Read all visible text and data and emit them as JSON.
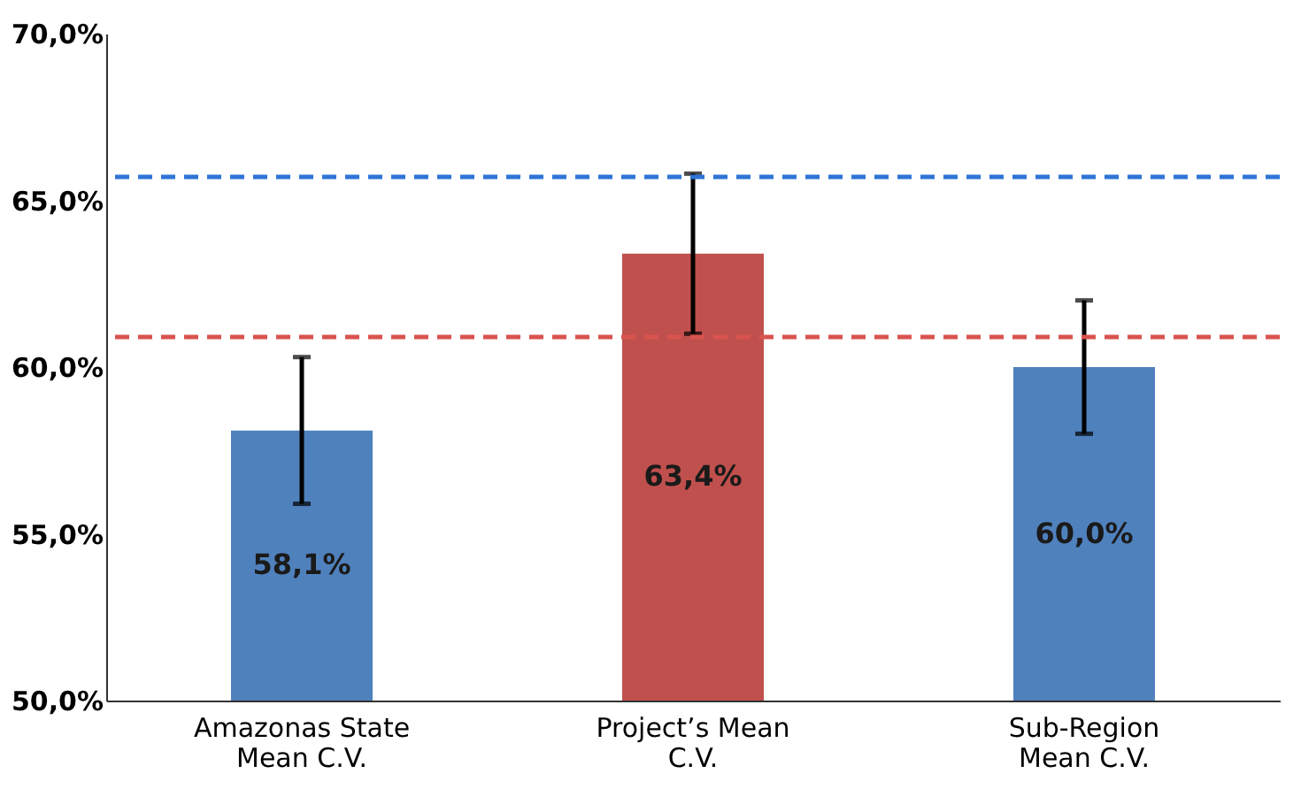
{
  "chart_data": {
    "type": "bar",
    "categories": [
      "Amazonas State Mean C.V.",
      "Project’s Mean C.V.",
      "Sub-Region Mean C.V."
    ],
    "values": [
      58.1,
      63.4,
      60.0
    ],
    "colors": [
      "#4f81bd",
      "#c0504d",
      "#4f81bd"
    ],
    "errors": [
      2.2,
      2.4,
      2.0
    ],
    "value_labels": [
      "58,1%",
      "63,4%",
      "60,0%"
    ],
    "ylim": [
      50,
      70
    ],
    "yticks": [
      {
        "value": 50,
        "label": "50,0%"
      },
      {
        "value": 55,
        "label": "55,0%"
      },
      {
        "value": 60,
        "label": "60,0%"
      },
      {
        "value": 65,
        "label": "65,0%"
      },
      {
        "value": 70,
        "label": "70,0%"
      }
    ],
    "ref_lines": [
      {
        "axis": "y",
        "value": 65.7,
        "color": "#2e75d6",
        "line_style": "dashed"
      },
      {
        "axis": "y",
        "value": 60.9,
        "color": "#d9534f",
        "line_style": "dashed"
      }
    ],
    "grid": false
  }
}
